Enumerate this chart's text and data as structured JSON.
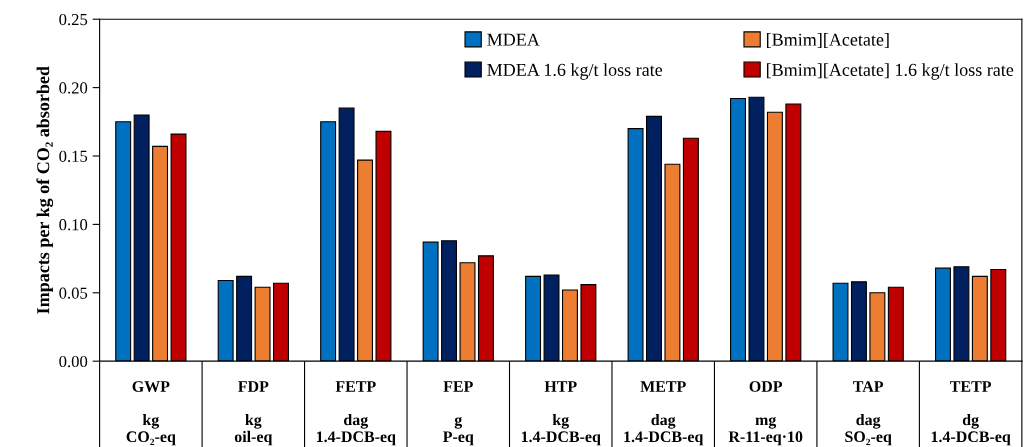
{
  "chart_data": {
    "type": "bar",
    "ylabel": "Impacts per kg of CO₂ absorbed",
    "categories": [
      "GWP\n\nkg\nCO₂-eq",
      "FDP\n\nkg\noil-eq",
      "FETP\n\ndag\n1.4-DCB-eq",
      "FEP\n\ng\nP-eq",
      "HTP\n\nkg\n1.4-DCB-eq",
      "METP\n\ndag\n1.4-DCB-eq",
      "ODP\n\nmg\nR-11-eq·10",
      "TAP\n\ndag\nSO₂-eq",
      "TETP\n\ndg\n1.4-DCB-eq"
    ],
    "series": [
      {
        "name": "MDEA",
        "color": "#0070c0",
        "values": [
          0.175,
          0.059,
          0.175,
          0.087,
          0.062,
          0.17,
          0.192,
          0.057,
          0.068
        ]
      },
      {
        "name": "MDEA 1.6 kg/t loss rate",
        "color": "#002060",
        "values": [
          0.18,
          0.062,
          0.185,
          0.088,
          0.063,
          0.179,
          0.193,
          0.058,
          0.069
        ]
      },
      {
        "name": "[Bmim][Acetate]",
        "color": "#ed7d31",
        "values": [
          0.157,
          0.054,
          0.147,
          0.072,
          0.052,
          0.144,
          0.182,
          0.05,
          0.062
        ]
      },
      {
        "name": "[Bmim][Acetate] 1.6 kg/t loss rate",
        "color": "#c00000",
        "values": [
          0.166,
          0.057,
          0.168,
          0.077,
          0.056,
          0.163,
          0.188,
          0.054,
          0.067
        ]
      }
    ],
    "ylim": [
      0,
      0.25
    ],
    "yticks": [
      {
        "value": 0,
        "label": "0.00"
      },
      {
        "value": 0.05,
        "label": "0.05"
      },
      {
        "value": 0.1,
        "label": "0.10"
      },
      {
        "value": 0.15,
        "label": "0.15"
      },
      {
        "value": 0.2,
        "label": "0.20"
      },
      {
        "value": 0.25,
        "label": "0.25"
      }
    ],
    "grid": false,
    "legend": "top right"
  }
}
